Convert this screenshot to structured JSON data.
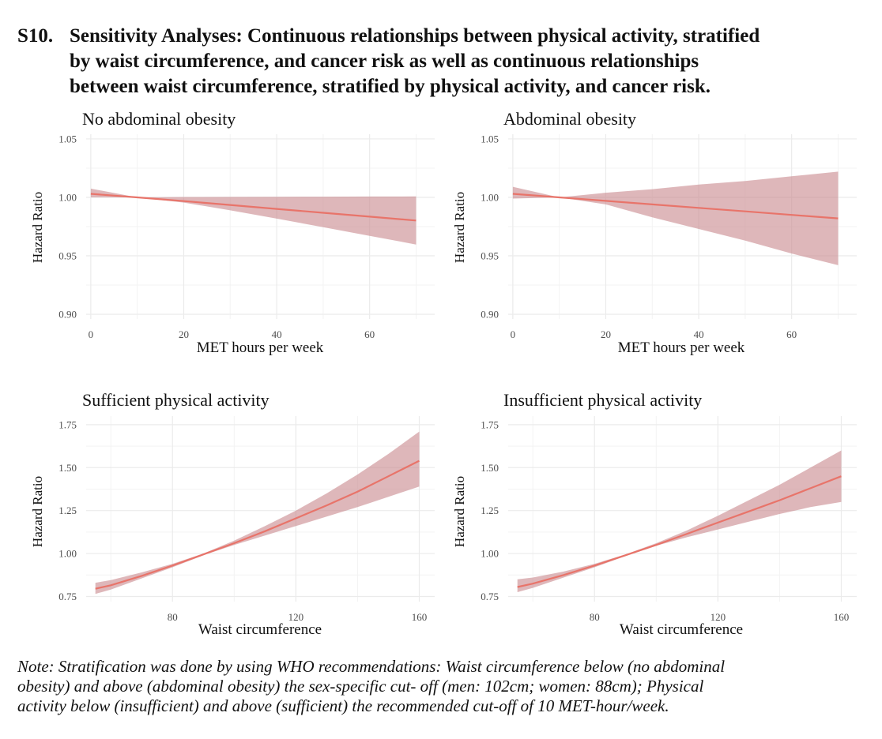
{
  "title": {
    "number": "S10.",
    "lines": [
      "Sensitivity Analyses: Continuous relationships between physical activity, stratified",
      "by waist circumference, and cancer risk as well as continuous relationships",
      "between waist circumference, stratified by physical activity, and cancer risk."
    ]
  },
  "note": {
    "lines": [
      "Note: Stratification was done by using WHO recommendations: Waist circumference  below (no abdominal",
      "obesity) and above (abdominal obesity) the sex-specific cut- off (men: 102cm; women: 88cm); Physical",
      "activity below (insufficient) and above (sufficient) the recommended cut-off of 10 MET-hour/week."
    ]
  },
  "colors": {
    "line": "#e8746a",
    "band": "#c98a8f",
    "grid": "#ebebeb"
  },
  "chart_data": [
    {
      "id": "p1",
      "type": "line",
      "title": "No abdominal obesity",
      "xlabel": "MET hours per week",
      "ylabel": "Hazard Ratio",
      "xlim": [
        -1,
        74
      ],
      "ylim": [
        0.896,
        1.054
      ],
      "xticks": [
        0,
        20,
        40,
        60
      ],
      "xtick_labels": [
        "0",
        "20",
        "40",
        "60"
      ],
      "yticks": [
        0.9,
        0.95,
        1.0,
        1.05
      ],
      "ytick_labels": [
        "0.90",
        "0.95",
        "1.00",
        "1.05"
      ],
      "x": [
        0,
        10,
        20,
        30,
        40,
        50,
        60,
        70
      ],
      "y": [
        1.003,
        1.0,
        0.9968,
        0.9935,
        0.9901,
        0.9868,
        0.9835,
        0.9802
      ],
      "lower": [
        1.0,
        1.0,
        0.9955,
        0.9889,
        0.9818,
        0.9745,
        0.9671,
        0.9597
      ],
      "upper": [
        1.0075,
        1.0,
        1.0003,
        1.0004,
        1.0005,
        1.0006,
        1.0007,
        1.0008
      ]
    },
    {
      "id": "p2",
      "type": "line",
      "title": "Abdominal obesity",
      "xlabel": "MET hours per week",
      "ylabel": "Hazard Ratio",
      "xlim": [
        -1,
        74
      ],
      "ylim": [
        0.896,
        1.054
      ],
      "xticks": [
        0,
        20,
        40,
        60
      ],
      "xtick_labels": [
        "0",
        "20",
        "40",
        "60"
      ],
      "yticks": [
        0.9,
        0.95,
        1.0,
        1.05
      ],
      "ytick_labels": [
        "0.90",
        "0.95",
        "1.00",
        "1.05"
      ],
      "x": [
        0,
        10,
        20,
        30,
        40,
        50,
        60,
        70
      ],
      "y": [
        1.003,
        1.0,
        0.997,
        0.994,
        0.991,
        0.988,
        0.985,
        0.982
      ],
      "lower": [
        0.999,
        1.0,
        0.994,
        0.983,
        0.973,
        0.963,
        0.952,
        0.942
      ],
      "upper": [
        1.009,
        1.0,
        1.004,
        1.007,
        1.011,
        1.014,
        1.018,
        1.022
      ]
    },
    {
      "id": "p3",
      "type": "line",
      "title": "Sufficient physical activity",
      "xlabel": "Waist circumference",
      "ylabel": "Hazard Ratio",
      "xlim": [
        52,
        165
      ],
      "ylim": [
        0.72,
        1.8
      ],
      "xticks": [
        80,
        120,
        160
      ],
      "xtick_labels": [
        "80",
        "120",
        "160"
      ],
      "yticks": [
        0.75,
        1.0,
        1.25,
        1.5,
        1.75
      ],
      "ytick_labels": [
        "0.75",
        "1.00",
        "1.25",
        "1.50",
        "1.75"
      ],
      "x": [
        55,
        60,
        70,
        80,
        90,
        100,
        110,
        120,
        130,
        140,
        150,
        160
      ],
      "y": [
        0.795,
        0.815,
        0.87,
        0.93,
        0.995,
        1.06,
        1.13,
        1.205,
        1.28,
        1.36,
        1.45,
        1.54
      ],
      "lower": [
        0.765,
        0.79,
        0.855,
        0.92,
        0.99,
        1.05,
        1.105,
        1.16,
        1.215,
        1.27,
        1.33,
        1.39
      ],
      "upper": [
        0.83,
        0.845,
        0.89,
        0.94,
        1.0,
        1.075,
        1.16,
        1.25,
        1.35,
        1.46,
        1.58,
        1.71
      ]
    },
    {
      "id": "p4",
      "type": "line",
      "title": "Insufficient physical activity",
      "xlabel": "Waist circumference",
      "ylabel": "Hazard Ratio",
      "xlim": [
        52,
        165
      ],
      "ylim": [
        0.72,
        1.8
      ],
      "xticks": [
        80,
        120,
        160
      ],
      "xtick_labels": [
        "80",
        "120",
        "160"
      ],
      "yticks": [
        0.75,
        1.0,
        1.25,
        1.5,
        1.75
      ],
      "ytick_labels": [
        "0.75",
        "1.00",
        "1.25",
        "1.50",
        "1.75"
      ],
      "x": [
        55,
        60,
        70,
        80,
        90,
        100,
        110,
        120,
        130,
        140,
        150,
        160
      ],
      "y": [
        0.805,
        0.825,
        0.875,
        0.93,
        0.99,
        1.05,
        1.115,
        1.18,
        1.245,
        1.31,
        1.38,
        1.45
      ],
      "lower": [
        0.775,
        0.8,
        0.86,
        0.92,
        0.985,
        1.045,
        1.095,
        1.14,
        1.185,
        1.23,
        1.27,
        1.3
      ],
      "upper": [
        0.85,
        0.86,
        0.895,
        0.94,
        0.995,
        1.06,
        1.135,
        1.22,
        1.31,
        1.4,
        1.5,
        1.6
      ]
    }
  ]
}
